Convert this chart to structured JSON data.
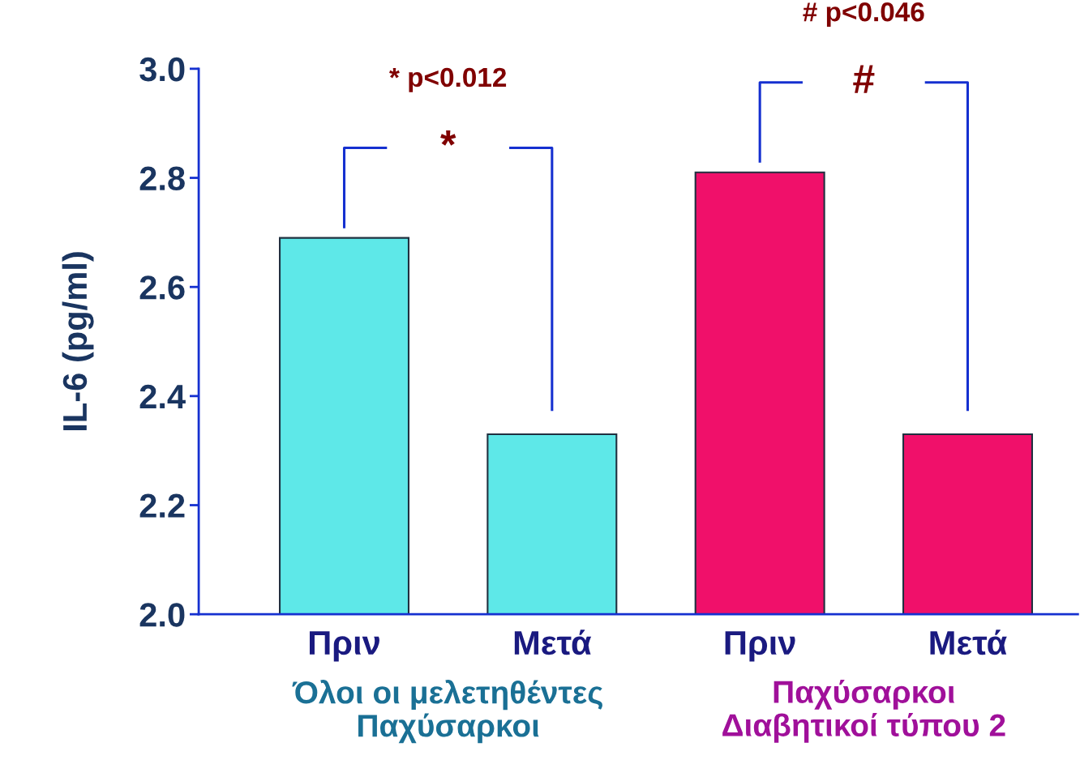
{
  "chart_data": {
    "type": "bar",
    "ylabel": "IL-6 (pg/ml)",
    "categories": [
      "Πριν",
      "Μετά",
      "Πριν",
      "Μετά"
    ],
    "values": [
      2.69,
      2.33,
      2.81,
      2.33
    ],
    "colors": [
      "#5ee8e8",
      "#5ee8e8",
      "#f0106a",
      "#f0106a"
    ],
    "ylim": [
      2.0,
      3.0
    ],
    "yticks": [
      {
        "value": 2.0,
        "label": "2.0"
      },
      2.2,
      2.4,
      2.6,
      2.8,
      {
        "value": 3.0,
        "label": "3.0"
      }
    ],
    "grid": false,
    "annotations": [
      "* p<0.012",
      "*",
      "# p<0.046",
      "#",
      "Όλοι οι μελετηθέντες\nΠαχύσαρκοι",
      "Παχύσαρκοι\nΔιαβητικοί τύπου 2"
    ]
  }
}
